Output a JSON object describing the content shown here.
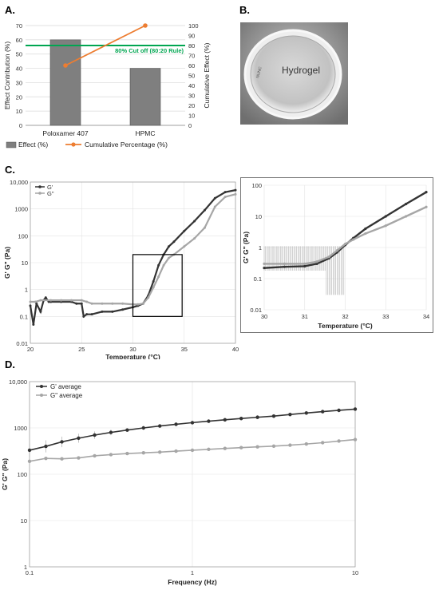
{
  "panels": {
    "A": "A.",
    "B": "B.",
    "C": "C.",
    "D": "D."
  },
  "colors": {
    "bar": "#7f7f7f",
    "cumulative_line": "#ed7d31",
    "cutoff_line": "#00a651",
    "g_prime": "#333333",
    "g_double_prime": "#a6a6a6"
  },
  "chart_data": [
    {
      "id": "A",
      "type": "bar",
      "categories": [
        "Poloxamer 407",
        "HPMC"
      ],
      "series": [
        {
          "name": "Effect (%)",
          "axis": "left",
          "type": "bar",
          "values": [
            60,
            40
          ]
        },
        {
          "name": "Cumulative Percentage (%)",
          "axis": "right",
          "type": "line",
          "values": [
            60,
            100
          ]
        }
      ],
      "cutoff": {
        "label": "80% Cut off (80:20 Rule)",
        "value": 80
      },
      "ylabel": "Effect Contribution (%)",
      "y2label": "Cumulative Effect (%)",
      "ylim": [
        0,
        70
      ],
      "y2lim": [
        0,
        100
      ],
      "yticks": [
        "0",
        "10",
        "20",
        "30",
        "40",
        "50",
        "60",
        "70"
      ],
      "y2ticks": [
        "0",
        "10",
        "20",
        "30",
        "40",
        "50",
        "60",
        "70",
        "80",
        "90",
        "100"
      ],
      "legend_position": "bottom"
    },
    {
      "id": "C",
      "type": "line",
      "xlabel": "Temperature (°C)",
      "ylabel": "G' G\" (Pa)",
      "xlim": [
        20,
        40
      ],
      "ylim": [
        0.01,
        10000
      ],
      "yscale": "log",
      "xticks": [
        "20",
        "25",
        "30",
        "35",
        "40"
      ],
      "yticks": [
        "0.01",
        "0.1",
        "1",
        "10",
        "100",
        "1000",
        "10,000"
      ],
      "legend_position": "top-left",
      "series": [
        {
          "name": "G'",
          "x": [
            20,
            20.3,
            20.6,
            21,
            21.3,
            21.5,
            21.8,
            22,
            23,
            24,
            24.5,
            25,
            25.2,
            25.5,
            26,
            27,
            28,
            29,
            30,
            30.5,
            31,
            31.5,
            32,
            32.5,
            33,
            33.5,
            34,
            35,
            36,
            37,
            38,
            39,
            40
          ],
          "y": [
            0.25,
            0.05,
            0.3,
            0.15,
            0.4,
            0.5,
            0.35,
            0.35,
            0.35,
            0.35,
            0.3,
            0.3,
            0.1,
            0.12,
            0.12,
            0.15,
            0.15,
            0.18,
            0.22,
            0.25,
            0.3,
            0.6,
            2,
            8,
            20,
            40,
            60,
            150,
            350,
            900,
            2500,
            4200,
            5000
          ]
        },
        {
          "name": "G\"",
          "x": [
            20,
            20.5,
            21,
            22,
            23,
            24,
            25,
            25.5,
            26,
            27,
            28,
            29,
            30,
            30.5,
            31,
            31.5,
            32,
            32.5,
            33,
            33.5,
            34,
            35,
            36,
            37,
            38,
            39,
            40
          ],
          "y": [
            0.35,
            0.35,
            0.4,
            0.4,
            0.4,
            0.4,
            0.4,
            0.35,
            0.3,
            0.3,
            0.3,
            0.3,
            0.28,
            0.28,
            0.3,
            0.5,
            1.2,
            3,
            8,
            15,
            20,
            40,
            80,
            200,
            1200,
            2800,
            3500
          ]
        }
      ],
      "highlight_box": {
        "x": [
          30,
          34.8
        ],
        "y": [
          0.1,
          20
        ]
      },
      "inset": {
        "xlabel": "Temperature (°C)",
        "ylabel": "G' G\" (Pa)",
        "xlim": [
          30,
          34
        ],
        "ylim": [
          0.01,
          100
        ],
        "yscale": "log",
        "xticks": [
          "30",
          "31",
          "32",
          "33",
          "34"
        ],
        "yticks": [
          "0.01",
          "0.1",
          "1",
          "10",
          "100"
        ],
        "series": [
          {
            "name": "G'",
            "x": [
              30,
              30.5,
              31,
              31.3,
              31.6,
              31.8,
              32,
              32.2,
              32.5,
              33,
              33.5,
              34
            ],
            "y": [
              0.22,
              0.24,
              0.25,
              0.3,
              0.45,
              0.7,
              1.2,
              2,
              4,
              10,
              25,
              60
            ]
          },
          {
            "name": "G\"",
            "x": [
              30,
              30.5,
              31,
              31.3,
              31.6,
              31.8,
              32,
              32.2,
              32.5,
              33,
              33.5,
              34
            ],
            "y": [
              0.3,
              0.3,
              0.3,
              0.35,
              0.5,
              0.8,
              1.3,
              1.8,
              2.8,
              5,
              10,
              20
            ]
          }
        ]
      }
    },
    {
      "id": "D",
      "type": "line",
      "xlabel": "Frequency (Hz)",
      "ylabel": "G' G\" (Pa)",
      "xlim": [
        0.1,
        10
      ],
      "ylim": [
        1,
        10000
      ],
      "xscale": "log",
      "yscale": "log",
      "xticks": [
        "0.1",
        "1",
        "10"
      ],
      "yticks": [
        "1",
        "10",
        "100",
        "1000",
        "10,000"
      ],
      "legend_position": "top-left",
      "series": [
        {
          "name": "G' average",
          "x": [
            0.1,
            0.126,
            0.158,
            0.2,
            0.251,
            0.316,
            0.398,
            0.501,
            0.631,
            0.794,
            1,
            1.259,
            1.585,
            1.995,
            2.512,
            3.162,
            3.981,
            5.012,
            6.31,
            7.943,
            10
          ],
          "y": [
            330,
            400,
            500,
            600,
            700,
            800,
            900,
            1000,
            1100,
            1200,
            1300,
            1400,
            1500,
            1600,
            1700,
            1800,
            1950,
            2100,
            2250,
            2400,
            2550
          ]
        },
        {
          "name": "G\" average",
          "x": [
            0.1,
            0.126,
            0.158,
            0.2,
            0.251,
            0.316,
            0.398,
            0.501,
            0.631,
            0.794,
            1,
            1.259,
            1.585,
            1.995,
            2.512,
            3.162,
            3.981,
            5.012,
            6.31,
            7.943,
            10
          ],
          "y": [
            190,
            220,
            215,
            225,
            250,
            265,
            280,
            290,
            300,
            315,
            330,
            345,
            360,
            375,
            390,
            405,
            425,
            450,
            480,
            520,
            560
          ]
        }
      ]
    }
  ],
  "photo": {
    "label": "Hydrogel",
    "rim_text": "NUNC"
  }
}
